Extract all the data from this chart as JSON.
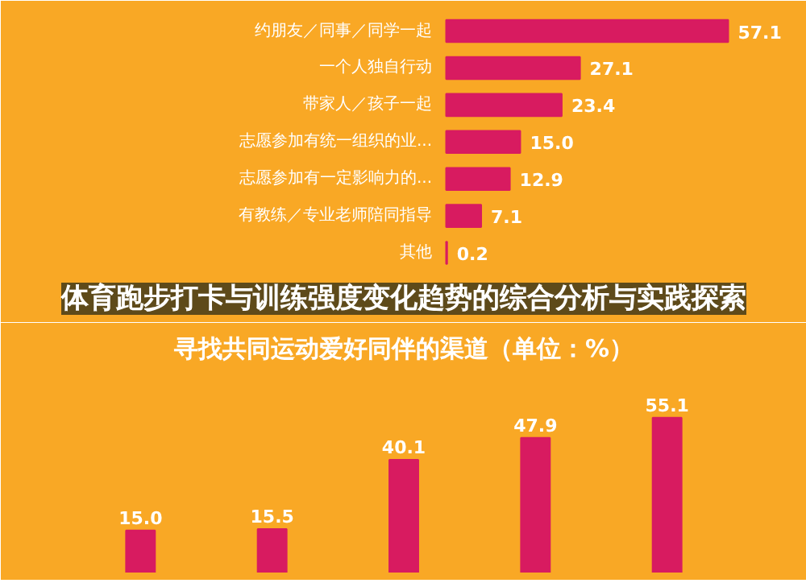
{
  "chart_data": [
    {
      "type": "bar",
      "orientation": "horizontal",
      "title": "体育跑步打卡与训练强度变化趋势的综合分析与实践探索",
      "categories": [
        "约朋友／同事／同学一起",
        "一个人独自行动",
        "带家人／孩子一起",
        "志愿参加有统一组织的业...",
        "志愿参加有一定影响力的...",
        "有教练／专业老师陪同指导",
        "其他"
      ],
      "values": [
        57.1,
        27.1,
        23.4,
        15.0,
        12.9,
        7.1,
        0.2
      ],
      "value_labels": [
        "57.1",
        "27.1",
        "23.4",
        "15.0",
        "12.9",
        "7.1",
        "0.2"
      ],
      "color": "#d81b60"
    },
    {
      "type": "bar",
      "title": "寻找共同运动爱好同伴的渠道（单位：%）",
      "categories": [
        null,
        null,
        null,
        null,
        null
      ],
      "values": [
        15.0,
        15.5,
        40.1,
        47.9,
        55.1
      ],
      "value_labels": [
        "15.0",
        "15.5",
        "40.1",
        "47.9",
        "55.1"
      ],
      "color": "#d81b60"
    }
  ]
}
